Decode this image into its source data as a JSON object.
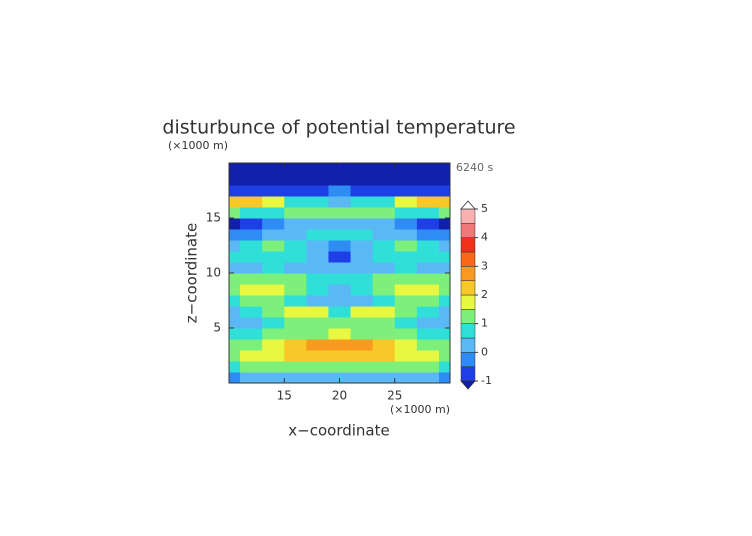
{
  "chart_data": {
    "type": "contour",
    "title": "disturbunce of potential temperature",
    "y_unit": "(×1000 m)",
    "x_unit": "(×1000 m)",
    "time_label": "6240 s",
    "xlabel": "x−coordinate",
    "ylabel": "z−coordinate",
    "xlim": [
      10,
      30
    ],
    "ylim": [
      0,
      20
    ],
    "xticks": [
      15,
      20,
      25
    ],
    "yticks": [
      5,
      10,
      15
    ],
    "x": [
      10,
      12,
      14,
      16,
      18,
      20,
      22,
      24,
      26,
      28,
      30
    ],
    "y": [
      0.5,
      1.5,
      2.5,
      3.5,
      4.5,
      5.5,
      6.5,
      7.5,
      8.5,
      9.5,
      10.5,
      11.5,
      12.5,
      13.5,
      14.5,
      15.5,
      16.5,
      17.5,
      18.5,
      19.5
    ],
    "z": [
      [
        -0.3,
        0,
        0.2,
        0.3,
        0.3,
        0.4,
        0.3,
        0.3,
        0.2,
        0,
        -0.3
      ],
      [
        0.8,
        1,
        1.1,
        1.2,
        1.3,
        1.3,
        1.3,
        1.2,
        1.1,
        1,
        0.8
      ],
      [
        1.2,
        1.5,
        1.8,
        2,
        2.1,
        2.1,
        2.1,
        2,
        1.8,
        1.5,
        1.2
      ],
      [
        1,
        1.3,
        1.7,
        2,
        2.5,
        2.8,
        2.5,
        2,
        1.7,
        1.3,
        1
      ],
      [
        0.6,
        0.8,
        1,
        1.2,
        1.4,
        1.5,
        1.4,
        1.2,
        1,
        0.8,
        0.6
      ],
      [
        0.2,
        0.3,
        0.6,
        1,
        1.3,
        1.1,
        1.3,
        1,
        0.6,
        0.3,
        0.2
      ],
      [
        0.3,
        0.6,
        1,
        1.6,
        1.5,
        0.8,
        1.5,
        1.6,
        1,
        0.6,
        0.3
      ],
      [
        0.8,
        1,
        1.2,
        0.8,
        0.3,
        0,
        0.3,
        0.8,
        1.2,
        1,
        0.8
      ],
      [
        1.3,
        1.5,
        1.6,
        1.2,
        0.6,
        0.1,
        0.6,
        1.2,
        1.6,
        1.5,
        1.3
      ],
      [
        1.1,
        1.2,
        1.3,
        1.2,
        0.9,
        0.6,
        0.9,
        1.2,
        1.3,
        1.2,
        1.1
      ],
      [
        0.2,
        0.3,
        0.5,
        0.4,
        0.2,
        0,
        0.2,
        0.4,
        0.5,
        0.3,
        0.2
      ],
      [
        0.5,
        0.6,
        0.7,
        0.5,
        0,
        -0.6,
        0,
        0.5,
        0.7,
        0.6,
        0.5
      ],
      [
        0.4,
        0.9,
        1.1,
        0.8,
        0.2,
        -0.3,
        0.2,
        0.8,
        1.1,
        0.9,
        0.4
      ],
      [
        -0.4,
        -0.2,
        0,
        0.3,
        0.5,
        0.6,
        0.5,
        0.3,
        0,
        -0.2,
        -0.4
      ],
      [
        -1.1,
        -0.9,
        -0.4,
        0.2,
        0.4,
        0.4,
        0.4,
        0.2,
        -0.4,
        -0.9,
        -1.1
      ],
      [
        1,
        0.8,
        0.6,
        1,
        1.3,
        1.4,
        1.3,
        1,
        0.6,
        0.8,
        1
      ],
      [
        2.2,
        2.3,
        1.6,
        0.8,
        0.5,
        0.4,
        0.5,
        0.8,
        1.6,
        2.3,
        2.2
      ],
      [
        -0.9,
        -1,
        -1,
        -0.8,
        -0.6,
        -0.5,
        -0.6,
        -0.8,
        -1,
        -1,
        -0.9
      ],
      [
        -1.3,
        -1.3,
        -1.3,
        -1.3,
        -1.2,
        -1.1,
        -1.2,
        -1.3,
        -1.3,
        -1.3,
        -1.3
      ],
      [
        -1.3,
        -1.3,
        -1.3,
        -1.3,
        -1.3,
        -1.2,
        -1.3,
        -1.3,
        -1.3,
        -1.3,
        -1.3
      ]
    ],
    "colorbar": {
      "levels": [
        -1,
        -0.5,
        0,
        0.5,
        1,
        1.5,
        2,
        2.5,
        3,
        3.5,
        4,
        4.5,
        5
      ],
      "colors": [
        "#1f3fe6",
        "#2f8cf5",
        "#5ab8f5",
        "#30e0d8",
        "#7cf07a",
        "#e8f840",
        "#f8c828",
        "#f89a20",
        "#f86818",
        "#f03018",
        "#f07878",
        "#f8b0b0"
      ],
      "under_color": "#1020a8",
      "over_color": "#ffffff",
      "ticks": [
        -1,
        0,
        1,
        2,
        3,
        4,
        5
      ]
    }
  }
}
